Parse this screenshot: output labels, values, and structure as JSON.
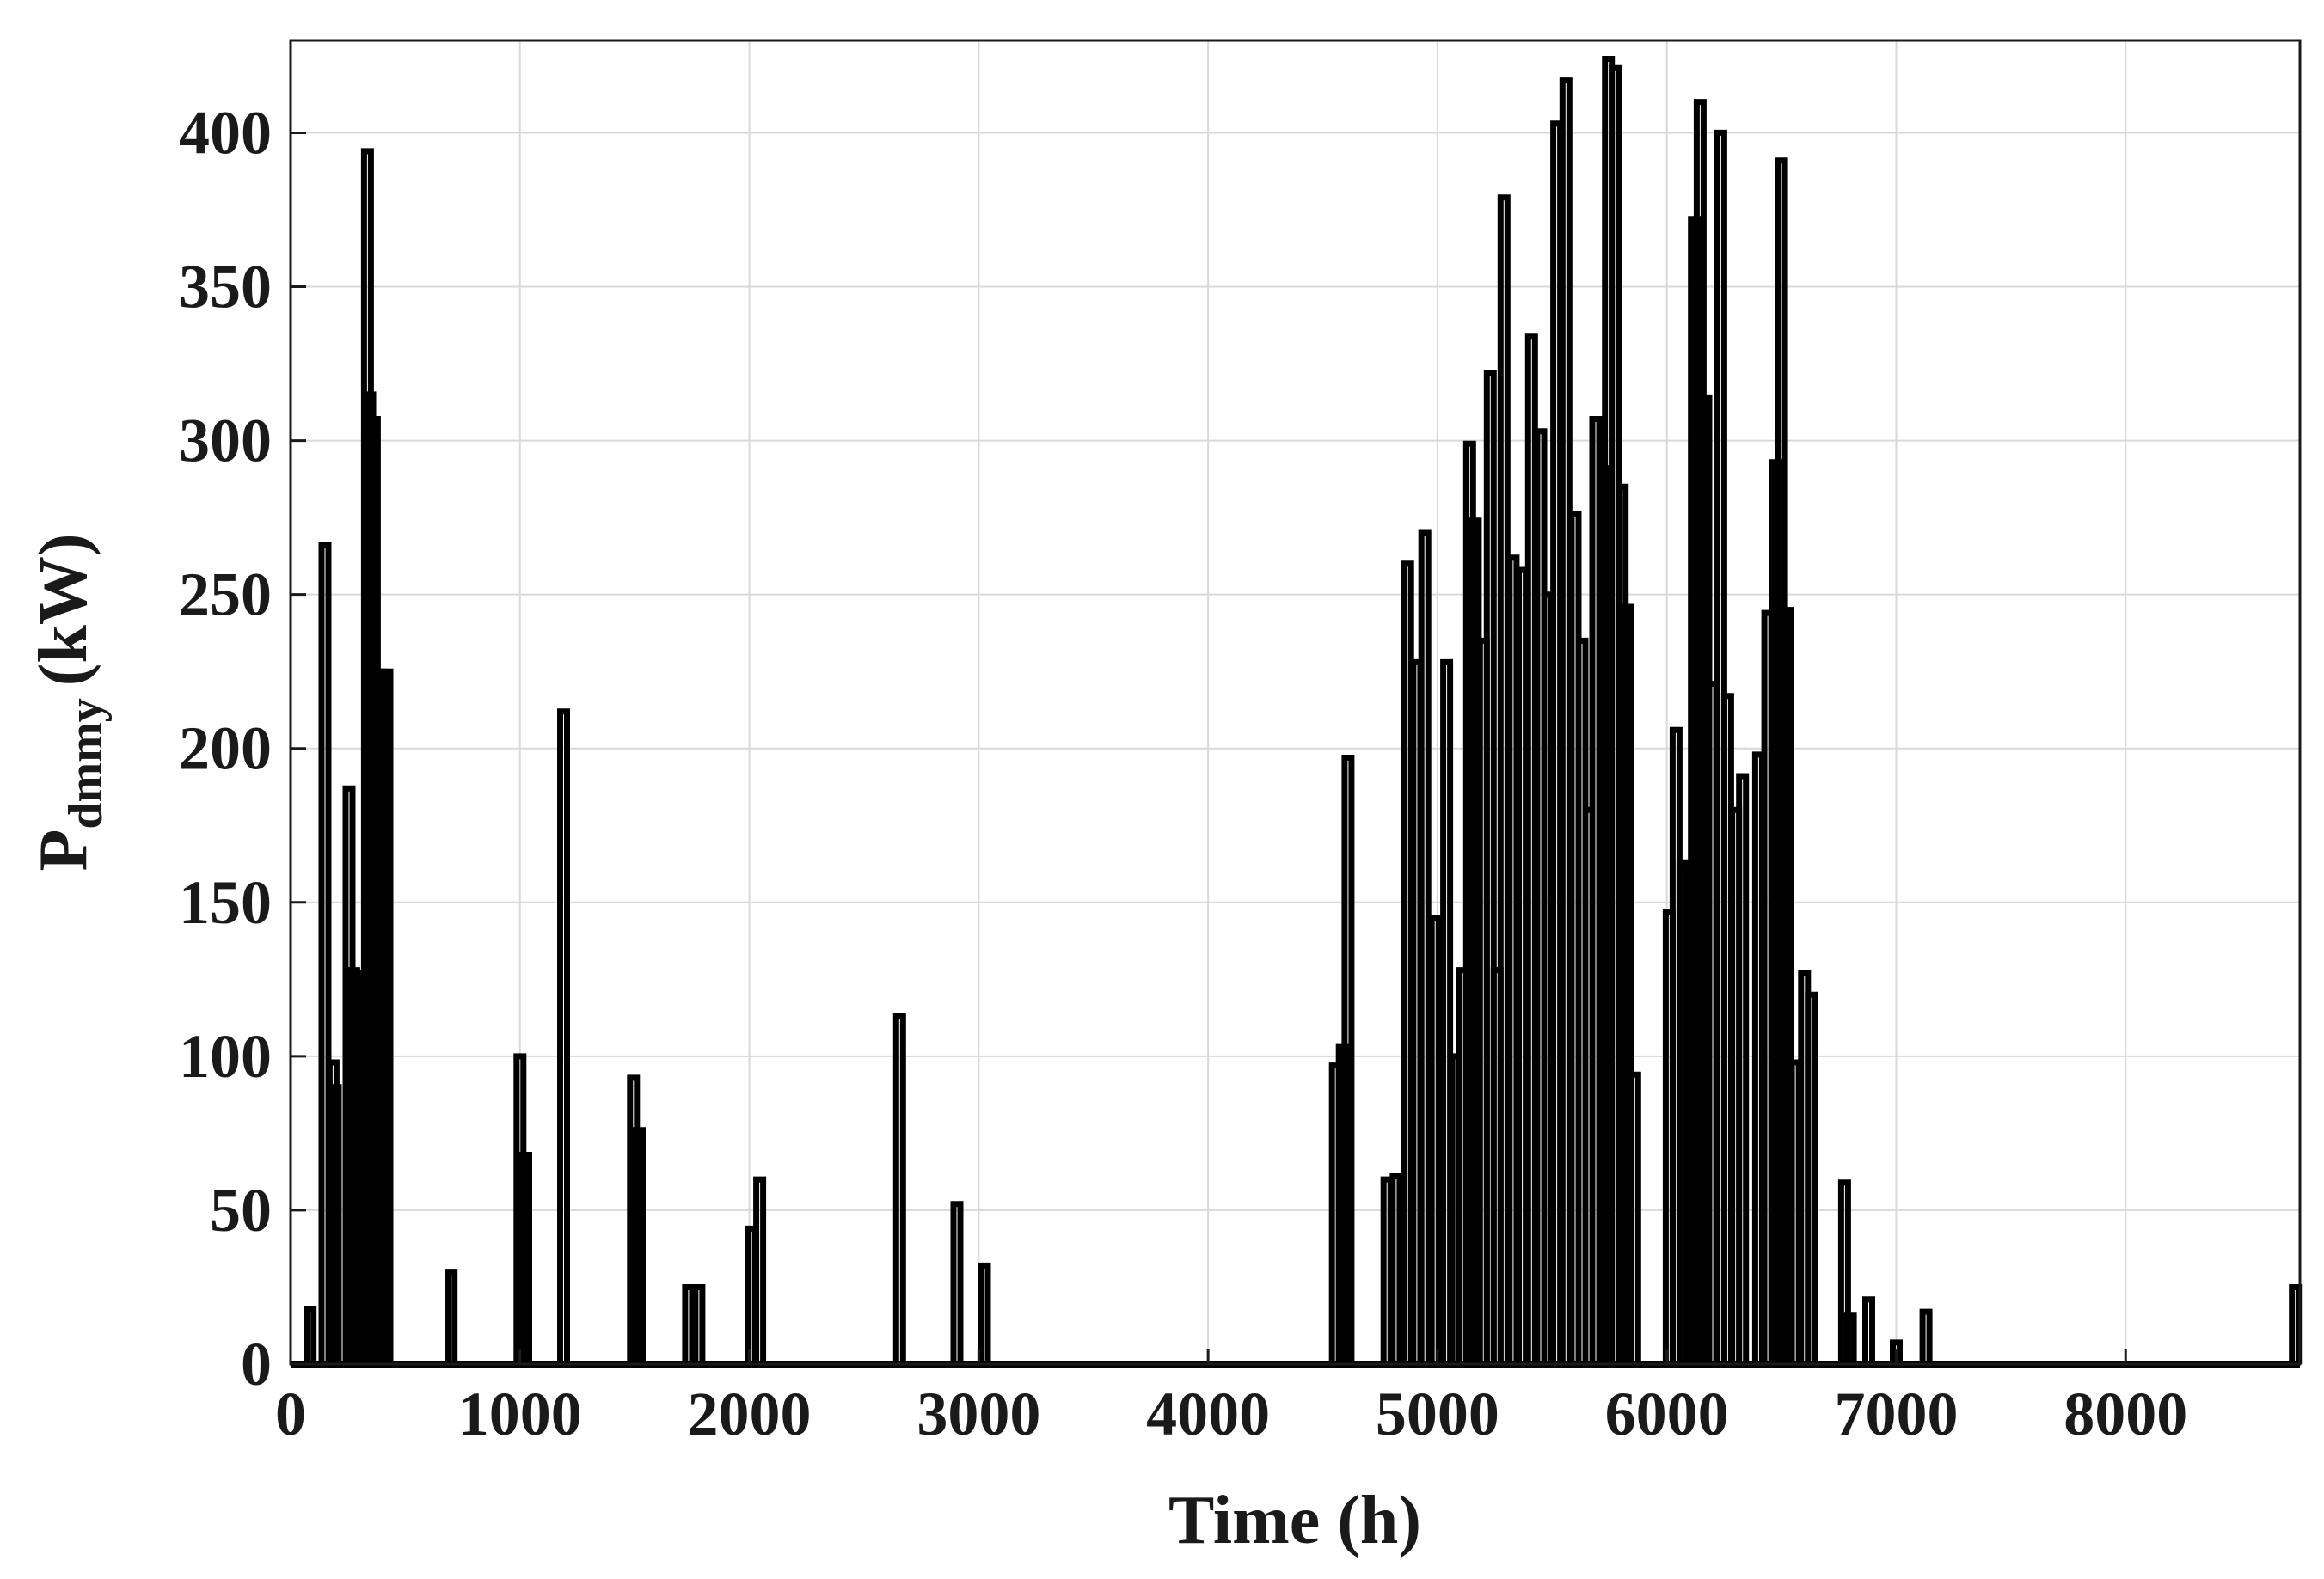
{
  "chart_data": {
    "type": "line",
    "xlabel": "Time (h)",
    "ylabel_main": "P",
    "ylabel_sub": "dmmy",
    "ylabel_unit": "(kW)",
    "xlim": [
      0,
      8760
    ],
    "ylim": [
      0,
      430
    ],
    "grid": true,
    "x_ticks": [
      {
        "value": 0,
        "label": "0"
      },
      {
        "value": 1000,
        "label": "1000"
      },
      {
        "value": 2000,
        "label": "2000"
      },
      {
        "value": 3000,
        "label": "3000"
      },
      {
        "value": 4000,
        "label": "4000"
      },
      {
        "value": 5000,
        "label": "5000"
      },
      {
        "value": 6000,
        "label": "6000"
      },
      {
        "value": 7000,
        "label": "7000"
      },
      {
        "value": 8000,
        "label": "8000"
      }
    ],
    "y_ticks": [
      {
        "value": 0,
        "label": "0"
      },
      {
        "value": 50,
        "label": "50"
      },
      {
        "value": 100,
        "label": "100"
      },
      {
        "value": 150,
        "label": "150"
      },
      {
        "value": 200,
        "label": "200"
      },
      {
        "value": 250,
        "label": "250"
      },
      {
        "value": 300,
        "label": "300"
      },
      {
        "value": 350,
        "label": "350"
      },
      {
        "value": 400,
        "label": "400"
      }
    ],
    "series": [
      {
        "color": "#000000",
        "spikes": [
          [
            85,
            18
          ],
          [
            150,
            266
          ],
          [
            185,
            98
          ],
          [
            195,
            90
          ],
          [
            255,
            187
          ],
          [
            275,
            128
          ],
          [
            295,
            127
          ],
          [
            335,
            394
          ],
          [
            345,
            315
          ],
          [
            365,
            307
          ],
          [
            395,
            225
          ],
          [
            420,
            225
          ],
          [
            700,
            30
          ],
          [
            1000,
            100
          ],
          [
            1025,
            68
          ],
          [
            1190,
            212
          ],
          [
            1495,
            93
          ],
          [
            1520,
            76
          ],
          [
            1735,
            25
          ],
          [
            1780,
            25
          ],
          [
            2010,
            44
          ],
          [
            2045,
            60
          ],
          [
            2655,
            113
          ],
          [
            2905,
            52
          ],
          [
            3025,
            32
          ],
          [
            4555,
            97
          ],
          [
            4585,
            103
          ],
          [
            4610,
            197
          ],
          [
            4780,
            60
          ],
          [
            4820,
            61
          ],
          [
            4870,
            260
          ],
          [
            4910,
            228
          ],
          [
            4945,
            270
          ],
          [
            4990,
            145
          ],
          [
            5040,
            228
          ],
          [
            5080,
            100
          ],
          [
            5110,
            128
          ],
          [
            5140,
            299
          ],
          [
            5165,
            274
          ],
          [
            5200,
            235
          ],
          [
            5230,
            322
          ],
          [
            5260,
            128
          ],
          [
            5290,
            379
          ],
          [
            5330,
            262
          ],
          [
            5370,
            258
          ],
          [
            5410,
            334
          ],
          [
            5450,
            303
          ],
          [
            5480,
            250
          ],
          [
            5520,
            403
          ],
          [
            5560,
            417
          ],
          [
            5600,
            276
          ],
          [
            5630,
            235
          ],
          [
            5660,
            180
          ],
          [
            5690,
            307
          ],
          [
            5720,
            291
          ],
          [
            5745,
            424
          ],
          [
            5775,
            421
          ],
          [
            5805,
            285
          ],
          [
            5830,
            246
          ],
          [
            5860,
            94
          ],
          [
            6010,
            147
          ],
          [
            6040,
            206
          ],
          [
            6070,
            163
          ],
          [
            6120,
            372
          ],
          [
            6145,
            410
          ],
          [
            6170,
            314
          ],
          [
            6200,
            221
          ],
          [
            6235,
            400
          ],
          [
            6265,
            217
          ],
          [
            6300,
            180
          ],
          [
            6330,
            191
          ],
          [
            6400,
            198
          ],
          [
            6440,
            244
          ],
          [
            6475,
            293
          ],
          [
            6500,
            391
          ],
          [
            6525,
            245
          ],
          [
            6560,
            98
          ],
          [
            6600,
            127
          ],
          [
            6630,
            120
          ],
          [
            6775,
            59
          ],
          [
            6800,
            16
          ],
          [
            6880,
            21
          ],
          [
            7000,
            7
          ],
          [
            7130,
            17
          ],
          [
            8740,
            25
          ]
        ]
      }
    ]
  }
}
